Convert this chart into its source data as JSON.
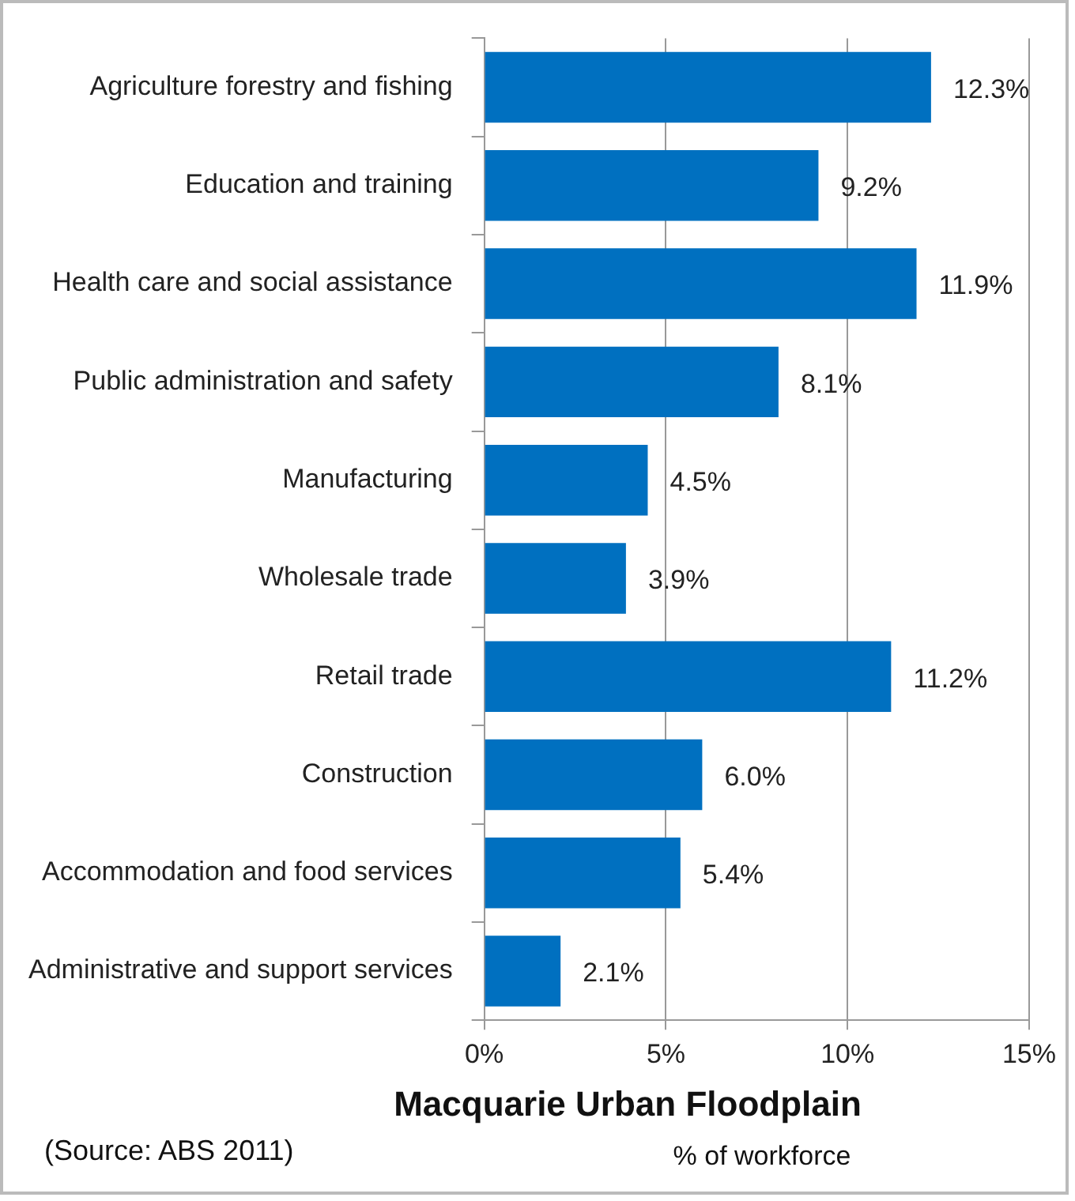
{
  "chart_data": {
    "type": "bar",
    "orientation": "horizontal",
    "title": "Macquarie Urban Floodplain",
    "xlabel": "% of workforce",
    "categories": [
      "Agriculture forestry and fishing",
      "Education and training",
      "Health care and social assistance",
      "Public administration and safety",
      "Manufacturing",
      "Wholesale trade",
      "Retail trade",
      "Construction",
      "Accommodation and food services",
      "Administrative and support services"
    ],
    "values": [
      12.3,
      9.2,
      11.9,
      8.1,
      4.5,
      3.9,
      11.2,
      6.0,
      5.4,
      2.1
    ],
    "value_labels": [
      "12.3%",
      "9.2%",
      "11.9%",
      "8.1%",
      "4.5%",
      "3.9%",
      "11.2%",
      "6.0%",
      "5.4%",
      "2.1%"
    ],
    "color": "#0070c0",
    "xlim": [
      0,
      15
    ],
    "xticks": [
      {
        "value": 0,
        "label": "0%"
      },
      {
        "value": 5,
        "label": "5%"
      },
      {
        "value": 10,
        "label": "10%"
      },
      {
        "value": 15,
        "label": "15%"
      }
    ],
    "grid": "x",
    "annotations": [
      "(Source: ABS 2011)"
    ]
  }
}
